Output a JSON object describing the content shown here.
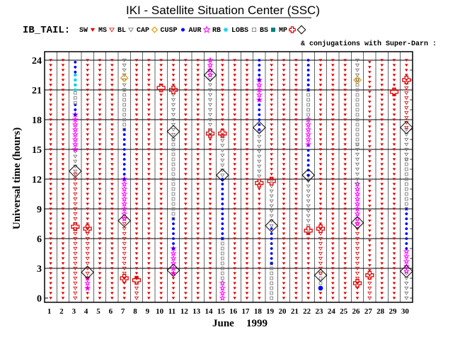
{
  "chart_data": {
    "type": "scatter",
    "title": "IKI - Satellite Situation Center (SSC)",
    "legend": {
      "prefix": "IB_TAIL:",
      "entries": [
        {
          "code": "SW",
          "label": "SW",
          "symbol": "wedge",
          "color": "#e00000"
        },
        {
          "code": "MS",
          "label": "MS",
          "symbol": "tri-down",
          "color": "#e00000"
        },
        {
          "code": "BL",
          "label": "BL",
          "symbol": "tri-down",
          "color": "#707070"
        },
        {
          "code": "CAP",
          "label": "CAP",
          "symbol": "diamond",
          "color": "#e8a000"
        },
        {
          "code": "CUSP",
          "label": "CUSP",
          "symbol": "dot",
          "color": "#0000ff"
        },
        {
          "code": "AUR",
          "label": "AUR",
          "symbol": "star",
          "color": "#ff00ff"
        },
        {
          "code": "RB",
          "label": "RB",
          "symbol": "star6",
          "color": "#00d0e0"
        },
        {
          "code": "LOBS",
          "label": "LOBS",
          "symbol": "square",
          "color": "#808080"
        },
        {
          "code": "BS",
          "label": "BS",
          "symbol": "square",
          "color": "#008080"
        },
        {
          "code": "MP",
          "label": "MP",
          "symbol": "cross",
          "color": "#e00000"
        },
        {
          "code": "SD",
          "label": "",
          "symbol": "big-diamond",
          "color": "#000000"
        }
      ],
      "note": "& conjugations with Super-Darn :"
    },
    "xlabel_month": "June",
    "xlabel_year": "1999",
    "ylabel": "Universal time (hours)",
    "xlim": [
      1,
      30
    ],
    "ylim": [
      0,
      24
    ],
    "x_ticks": [
      "1",
      "2",
      "3",
      "4",
      "5",
      "6",
      "7",
      "8",
      "9",
      "10",
      "11",
      "12",
      "13",
      "14",
      "15",
      "16",
      "17",
      "18",
      "19",
      "20",
      "21",
      "22",
      "23",
      "24",
      "25",
      "26",
      "27",
      "28",
      "29",
      "30"
    ],
    "y_ticks": [
      0,
      3,
      6,
      9,
      12,
      15,
      18,
      21,
      24
    ],
    "days": [
      {
        "day": 1,
        "segments": [
          {
            "from": 0,
            "to": 24,
            "region": "SW"
          }
        ],
        "markers": []
      },
      {
        "day": 2,
        "segments": [
          {
            "from": 0,
            "to": 24,
            "region": "SW"
          }
        ],
        "markers": []
      },
      {
        "day": 3,
        "segments": [
          {
            "from": 0,
            "to": 12.8,
            "region": "MS"
          },
          {
            "from": 12.8,
            "to": 15,
            "region": "BL"
          },
          {
            "from": 15,
            "to": 18.5,
            "region": "AUR"
          },
          {
            "from": 18.5,
            "to": 19.7,
            "region": "CUSP"
          },
          {
            "from": 19.7,
            "to": 21,
            "region": "LOBS"
          },
          {
            "from": 21,
            "to": 22.8,
            "region": "RB"
          },
          {
            "from": 22.8,
            "to": 24,
            "region": "CUSP"
          }
        ],
        "markers": [
          {
            "t": 7.2,
            "sym": "MP"
          },
          {
            "t": 12.8,
            "sym": "SD"
          }
        ]
      },
      {
        "day": 4,
        "segments": [
          {
            "from": 0,
            "to": 1,
            "region": "SW"
          },
          {
            "from": 1,
            "to": 2,
            "region": "AUR"
          },
          {
            "from": 2,
            "to": 7,
            "region": "MS"
          },
          {
            "from": 7,
            "to": 24,
            "region": "SW"
          }
        ],
        "markers": [
          {
            "t": 2.6,
            "sym": "SD"
          },
          {
            "t": 7,
            "sym": "MP"
          }
        ]
      },
      {
        "day": 5,
        "segments": [
          {
            "from": 0,
            "to": 24,
            "region": "SW"
          }
        ],
        "markers": []
      },
      {
        "day": 6,
        "segments": [
          {
            "from": 0,
            "to": 24,
            "region": "SW"
          }
        ],
        "markers": []
      },
      {
        "day": 7,
        "segments": [
          {
            "from": 0,
            "to": 2,
            "region": "SW"
          },
          {
            "from": 2,
            "to": 8,
            "region": "MS"
          },
          {
            "from": 8,
            "to": 12,
            "region": "AUR"
          },
          {
            "from": 12,
            "to": 17,
            "region": "CUSP"
          },
          {
            "from": 17,
            "to": 21,
            "region": "LOBS"
          },
          {
            "from": 21,
            "to": 24,
            "region": "BL"
          }
        ],
        "markers": [
          {
            "t": 2,
            "sym": "MP"
          },
          {
            "t": 7.8,
            "sym": "SD"
          },
          {
            "t": 22.2,
            "sym": "CAP"
          }
        ]
      },
      {
        "day": 8,
        "segments": [
          {
            "from": 0,
            "to": 2,
            "region": "MS"
          },
          {
            "from": 2,
            "to": 24,
            "region": "SW"
          }
        ],
        "markers": [
          {
            "t": 1.8,
            "sym": "MP"
          }
        ]
      },
      {
        "day": 9,
        "segments": [
          {
            "from": 0,
            "to": 24,
            "region": "SW"
          }
        ],
        "markers": []
      },
      {
        "day": 10,
        "segments": [
          {
            "from": 0,
            "to": 24,
            "region": "SW"
          }
        ],
        "markers": [
          {
            "t": 21.2,
            "sym": "MP"
          }
        ]
      },
      {
        "day": 11,
        "segments": [
          {
            "from": 0,
            "to": 2.5,
            "region": "SW"
          },
          {
            "from": 2.5,
            "to": 5,
            "region": "AUR"
          },
          {
            "from": 5,
            "to": 8,
            "region": "CUSP"
          },
          {
            "from": 8,
            "to": 16,
            "region": "LOBS"
          },
          {
            "from": 16,
            "to": 21,
            "region": "BL"
          },
          {
            "from": 21,
            "to": 24,
            "region": "SW"
          }
        ],
        "markers": [
          {
            "t": 2.8,
            "sym": "SD"
          },
          {
            "t": 16.8,
            "sym": "SD"
          },
          {
            "t": 21,
            "sym": "MP"
          }
        ]
      },
      {
        "day": 12,
        "segments": [
          {
            "from": 0,
            "to": 24,
            "region": "SW"
          }
        ],
        "markers": []
      },
      {
        "day": 13,
        "segments": [
          {
            "from": 0,
            "to": 24,
            "region": "SW"
          }
        ],
        "markers": []
      },
      {
        "day": 14,
        "segments": [
          {
            "from": 0,
            "to": 16.5,
            "region": "SW"
          },
          {
            "from": 16.5,
            "to": 22.5,
            "region": "BL"
          },
          {
            "from": 22.5,
            "to": 24,
            "region": "AUR"
          }
        ],
        "markers": [
          {
            "t": 16.6,
            "sym": "MP"
          },
          {
            "t": 22.5,
            "sym": "SD"
          }
        ]
      },
      {
        "day": 15,
        "segments": [
          {
            "from": 0,
            "to": 1.5,
            "region": "AUR"
          },
          {
            "from": 1.5,
            "to": 6,
            "region": "LOBS"
          },
          {
            "from": 6,
            "to": 12.4,
            "region": "CUSP"
          },
          {
            "from": 12.4,
            "to": 16.5,
            "region": "BL"
          },
          {
            "from": 16.5,
            "to": 24,
            "region": "SW"
          }
        ],
        "markers": [
          {
            "t": 12.4,
            "sym": "SD"
          },
          {
            "t": 16.6,
            "sym": "MP"
          }
        ]
      },
      {
        "day": 16,
        "segments": [
          {
            "from": 0,
            "to": 24,
            "region": "SW"
          }
        ],
        "markers": []
      },
      {
        "day": 17,
        "segments": [
          {
            "from": 0,
            "to": 24,
            "region": "SW"
          }
        ],
        "markers": []
      },
      {
        "day": 18,
        "segments": [
          {
            "from": 0,
            "to": 11.8,
            "region": "SW"
          },
          {
            "from": 11.8,
            "to": 17,
            "region": "BL"
          },
          {
            "from": 17,
            "to": 20,
            "region": "CUSP"
          },
          {
            "from": 20,
            "to": 22,
            "region": "AUR"
          },
          {
            "from": 22,
            "to": 24,
            "region": "CUSP"
          }
        ],
        "markers": [
          {
            "t": 11.6,
            "sym": "MP"
          },
          {
            "t": 17.2,
            "sym": "SD"
          }
        ]
      },
      {
        "day": 19,
        "segments": [
          {
            "from": 0,
            "to": 3.5,
            "region": "LOBS"
          },
          {
            "from": 3.5,
            "to": 7.3,
            "region": "CUSP"
          },
          {
            "from": 7.3,
            "to": 12,
            "region": "BL"
          },
          {
            "from": 12,
            "to": 24,
            "region": "SW"
          }
        ],
        "markers": [
          {
            "t": 7.3,
            "sym": "SD"
          },
          {
            "t": 11.8,
            "sym": "MP"
          }
        ]
      },
      {
        "day": 20,
        "segments": [
          {
            "from": 0,
            "to": 24,
            "region": "SW"
          }
        ],
        "markers": []
      },
      {
        "day": 21,
        "segments": [
          {
            "from": 0,
            "to": 24,
            "region": "SW"
          }
        ],
        "markers": []
      },
      {
        "day": 22,
        "segments": [
          {
            "from": 0,
            "to": 6.8,
            "region": "SW"
          },
          {
            "from": 6.8,
            "to": 12.4,
            "region": "BL"
          },
          {
            "from": 12.4,
            "to": 15.5,
            "region": "CUSP"
          },
          {
            "from": 15.5,
            "to": 18,
            "region": "AUR"
          },
          {
            "from": 18,
            "to": 21,
            "region": "LOBS"
          },
          {
            "from": 21,
            "to": 24,
            "region": "CUSP"
          }
        ],
        "markers": [
          {
            "t": 6.8,
            "sym": "MP"
          },
          {
            "t": 12.4,
            "sym": "SD"
          }
        ]
      },
      {
        "day": 23,
        "segments": [
          {
            "from": 0,
            "to": 1,
            "region": "SW"
          },
          {
            "from": 1,
            "to": 2.5,
            "region": "LOBS"
          },
          {
            "from": 2.5,
            "to": 7,
            "region": "MS"
          },
          {
            "from": 7,
            "to": 24,
            "region": "SW"
          }
        ],
        "markers": [
          {
            "t": 1,
            "sym": "CUSP"
          },
          {
            "t": 2.3,
            "sym": "SD"
          },
          {
            "t": 7,
            "sym": "MP"
          }
        ]
      },
      {
        "day": 24,
        "segments": [
          {
            "from": 0,
            "to": 24,
            "region": "SW"
          }
        ],
        "markers": []
      },
      {
        "day": 25,
        "segments": [
          {
            "from": 0,
            "to": 24,
            "region": "SW"
          }
        ],
        "markers": []
      },
      {
        "day": 26,
        "segments": [
          {
            "from": 0,
            "to": 1.5,
            "region": "SW"
          },
          {
            "from": 1.5,
            "to": 7.5,
            "region": "MS"
          },
          {
            "from": 7.5,
            "to": 11.5,
            "region": "AUR"
          },
          {
            "from": 11.5,
            "to": 15.5,
            "region": "BL"
          },
          {
            "from": 15.5,
            "to": 22,
            "region": "LOBS"
          },
          {
            "from": 22,
            "to": 24,
            "region": "BL"
          }
        ],
        "markers": [
          {
            "t": 1.5,
            "sym": "MP"
          },
          {
            "t": 7.6,
            "sym": "SD"
          },
          {
            "t": 22,
            "sym": "CAP"
          }
        ]
      },
      {
        "day": 27,
        "segments": [
          {
            "from": 0,
            "to": 2.3,
            "region": "MS"
          },
          {
            "from": 2.3,
            "to": 24,
            "region": "SW"
          }
        ],
        "markers": [
          {
            "t": 2.3,
            "sym": "MP"
          }
        ]
      },
      {
        "day": 28,
        "segments": [
          {
            "from": 0,
            "to": 24,
            "region": "SW"
          }
        ],
        "markers": []
      },
      {
        "day": 29,
        "segments": [
          {
            "from": 0,
            "to": 24,
            "region": "SW"
          }
        ],
        "markers": [
          {
            "t": 20.8,
            "sym": "MP"
          }
        ]
      },
      {
        "day": 30,
        "segments": [
          {
            "from": 0,
            "to": 2.7,
            "region": "BL"
          },
          {
            "from": 2.7,
            "to": 5,
            "region": "AUR"
          },
          {
            "from": 5,
            "to": 9,
            "region": "CUSP"
          },
          {
            "from": 9,
            "to": 14,
            "region": "LOBS"
          },
          {
            "from": 14,
            "to": 17.2,
            "region": "BL"
          },
          {
            "from": 17.2,
            "to": 22,
            "region": "MS"
          },
          {
            "from": 22,
            "to": 24,
            "region": "SW"
          }
        ],
        "markers": [
          {
            "t": 2.7,
            "sym": "SD"
          },
          {
            "t": 17.2,
            "sym": "SD"
          },
          {
            "t": 22,
            "sym": "MP"
          }
        ]
      }
    ]
  }
}
